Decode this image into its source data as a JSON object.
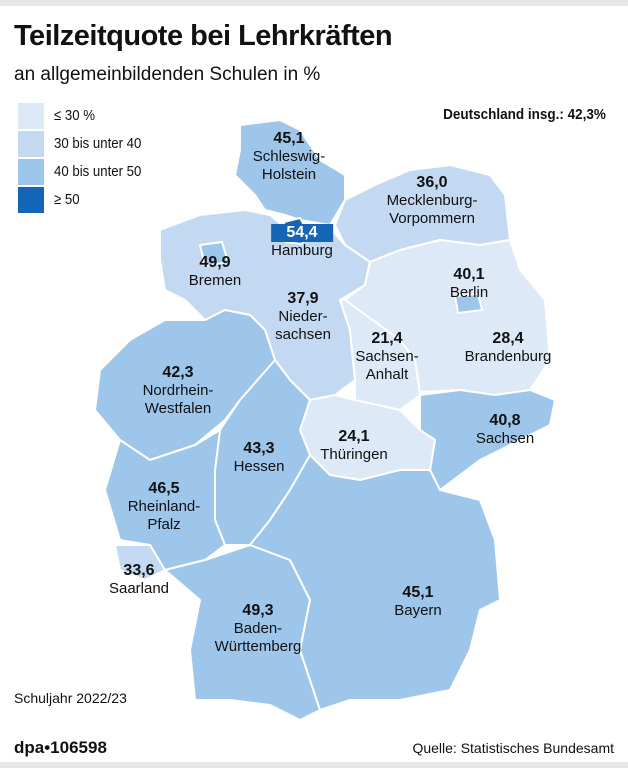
{
  "title": "Teilzeitquote bei Lehrkräften",
  "subtitle": "an allgemeinbildenden Schulen in %",
  "legend": [
    {
      "label": "≤ 30 %",
      "color": "#dde9f7"
    },
    {
      "label": "30 bis unter 40",
      "color": "#c3d9f1"
    },
    {
      "label": "40 bis unter 50",
      "color": "#9ec5ea"
    },
    {
      "label": "≥ 50",
      "color": "#1565b6"
    }
  ],
  "total": "Deutschland insg.: 42,3%",
  "states": {
    "sh": {
      "name": "Schleswig-\nHolstein",
      "value": "45,1",
      "class": 2
    },
    "hh": {
      "name": "Hamburg",
      "value": "54,4",
      "class": 3
    },
    "mv": {
      "name": "Mecklenburg-\nVorpommern",
      "value": "36,0",
      "class": 1
    },
    "hb": {
      "name": "Bremen",
      "value": "49,9",
      "class": 2
    },
    "ni": {
      "name": "Nieder-\nsachsen",
      "value": "37,9",
      "class": 1
    },
    "be": {
      "name": "Berlin",
      "value": "40,1",
      "class": 2
    },
    "bb": {
      "name": "Brandenburg",
      "value": "28,4",
      "class": 0
    },
    "st": {
      "name": "Sachsen-\nAnhalt",
      "value": "21,4",
      "class": 0
    },
    "nw": {
      "name": "Nordrhein-\nWestfalen",
      "value": "42,3",
      "class": 2
    },
    "he": {
      "name": "Hessen",
      "value": "43,3",
      "class": 2
    },
    "th": {
      "name": "Thüringen",
      "value": "24,1",
      "class": 0
    },
    "sn": {
      "name": "Sachsen",
      "value": "40,8",
      "class": 2
    },
    "rp": {
      "name": "Rheinland-\nPfalz",
      "value": "46,5",
      "class": 2
    },
    "sl": {
      "name": "Saarland",
      "value": "33,6",
      "class": 1
    },
    "bw": {
      "name": "Baden-\nWürttemberg",
      "value": "49,3",
      "class": 2
    },
    "by": {
      "name": "Bayern",
      "value": "45,1",
      "class": 2
    }
  },
  "footer": {
    "year": "Schuljahr 2022/23",
    "agency": "dpa•106598",
    "source": "Quelle: Statistisches Bundesamt"
  }
}
